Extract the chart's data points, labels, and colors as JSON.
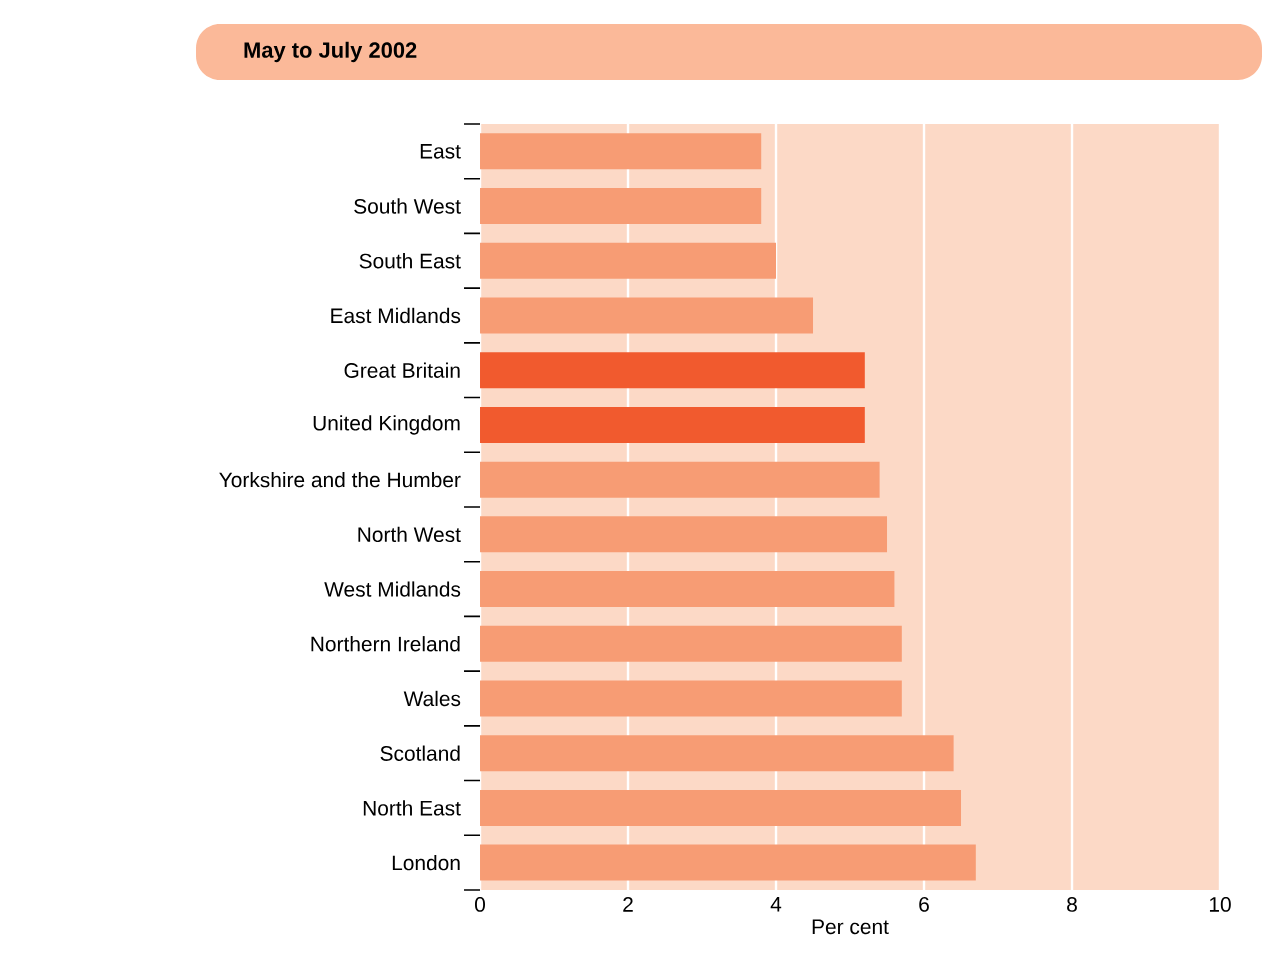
{
  "chart_data": {
    "type": "bar",
    "orientation": "horizontal",
    "title": "May to July 2002",
    "xlabel": "Per cent",
    "categories": [
      "East",
      "South West",
      "South East",
      "East Midlands",
      "Great Britain",
      "United Kingdom",
      "Yorkshire and the Humber",
      "North West",
      "West Midlands",
      "Northern Ireland",
      "Wales",
      "Scotland",
      "North East",
      "London"
    ],
    "values": [
      3.8,
      3.8,
      4.0,
      4.5,
      5.2,
      5.2,
      5.4,
      5.5,
      5.6,
      5.7,
      5.7,
      6.4,
      6.5,
      6.7
    ],
    "colors": [
      "#f79c74",
      "#f79c74",
      "#f79c74",
      "#f79c74",
      "#f15a2e",
      "#f15a2e",
      "#f79c74",
      "#f79c74",
      "#f79c74",
      "#f79c74",
      "#f79c74",
      "#f79c74",
      "#f79c74",
      "#f79c74"
    ],
    "xlim": [
      0,
      10
    ],
    "xticks": [
      0,
      2,
      4,
      6,
      8,
      10
    ],
    "grid": "x"
  }
}
